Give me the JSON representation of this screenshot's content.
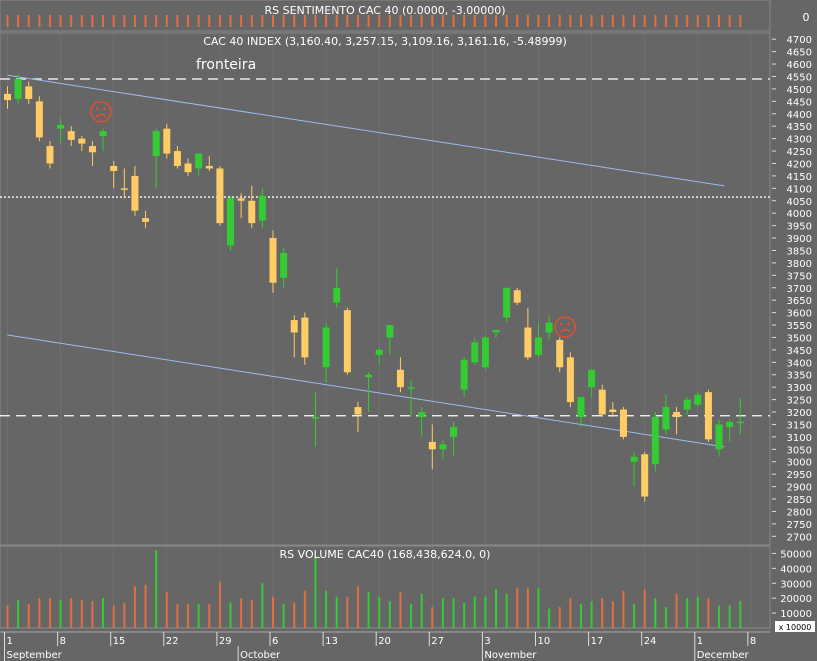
{
  "colors": {
    "background": "#666666",
    "grid": "#7a7a7a",
    "text": "#ffffff",
    "up": "#33cc33",
    "down": "#ffcc66",
    "volume_up": "#33cc33",
    "volume_down": "#e07040",
    "sentiment_bar": "#e07040",
    "trendline": "#99bbee",
    "frown": "#e05030"
  },
  "sentiment_panel": {
    "title": "RS SENTIMENTO CAC 40 (0.0000, -3.00000)",
    "axis_label": "0"
  },
  "price_panel": {
    "title": "CAC 40 INDEX (3,160.40, 3,257.15, 3,109.16, 3,161.16, -5.48999)",
    "annotation": "fronteira"
  },
  "volume_panel": {
    "title": "RS VOLUME CAC40 (168,438,624.0, 0)",
    "scale_label": "x 10000"
  },
  "chart_data": {
    "type": "candlestick",
    "title": "CAC 40 INDEX (3,160.40, 3,257.15, 3,109.16, 3,161.16, -5.48999)",
    "y_ticks": [
      2700,
      2750,
      2800,
      2850,
      2900,
      2950,
      3000,
      3050,
      3100,
      3150,
      3200,
      3250,
      3300,
      3350,
      3400,
      3450,
      3500,
      3550,
      3600,
      3650,
      3700,
      3750,
      3800,
      3850,
      3900,
      3950,
      4000,
      4050,
      4100,
      4150,
      4200,
      4250,
      4300,
      4350,
      4400,
      4450,
      4500,
      4550,
      4600,
      4650,
      4700
    ],
    "ylim": [
      2665,
      4725
    ],
    "x_ticks": [
      {
        "label": "1",
        "index": 0
      },
      {
        "label": "8",
        "index": 5
      },
      {
        "label": "15",
        "index": 10
      },
      {
        "label": "22",
        "index": 15
      },
      {
        "label": "29",
        "index": 20
      },
      {
        "label": "6",
        "index": 25
      },
      {
        "label": "13",
        "index": 30
      },
      {
        "label": "20",
        "index": 35
      },
      {
        "label": "27",
        "index": 40
      },
      {
        "label": "3",
        "index": 45
      },
      {
        "label": "10",
        "index": 50
      },
      {
        "label": "17",
        "index": 55
      },
      {
        "label": "24",
        "index": 60
      },
      {
        "label": "1",
        "index": 65
      },
      {
        "label": "8",
        "index": 70
      }
    ],
    "months": [
      {
        "label": "September",
        "index": 0
      },
      {
        "label": "October",
        "index": 22
      },
      {
        "label": "November",
        "index": 45
      },
      {
        "label": "December",
        "index": 65
      }
    ],
    "horizontal_lines": [
      4540,
      4065,
      3185
    ],
    "trendlines": [
      {
        "from": {
          "index": 0,
          "value": 4555
        },
        "to": {
          "index": 67.5,
          "value": 4110
        }
      },
      {
        "from": {
          "index": 0,
          "value": 3510
        },
        "to": {
          "index": 67.5,
          "value": 3060
        }
      }
    ],
    "frown_markers": [
      {
        "index": 8.8,
        "value": 4408
      },
      {
        "index": 52.5,
        "value": 3542
      }
    ],
    "candles": [
      {
        "o": 4480,
        "h": 4510,
        "l": 4420,
        "c": 4455
      },
      {
        "o": 4460,
        "h": 4560,
        "l": 4440,
        "c": 4540
      },
      {
        "o": 4510,
        "h": 4530,
        "l": 4440,
        "c": 4460
      },
      {
        "o": 4450,
        "h": 4470,
        "l": 4290,
        "c": 4305
      },
      {
        "o": 4270,
        "h": 4290,
        "l": 4180,
        "c": 4200
      },
      {
        "o": 4340,
        "h": 4380,
        "l": 4280,
        "c": 4355
      },
      {
        "o": 4330,
        "h": 4350,
        "l": 4270,
        "c": 4295
      },
      {
        "o": 4300,
        "h": 4310,
        "l": 4250,
        "c": 4280
      },
      {
        "o": 4270,
        "h": 4290,
        "l": 4190,
        "c": 4245
      },
      {
        "o": 4310,
        "h": 4340,
        "l": 4250,
        "c": 4330
      },
      {
        "o": 4190,
        "h": 4210,
        "l": 4100,
        "c": 4170
      },
      {
        "o": 4100,
        "h": 4180,
        "l": 4060,
        "c": 4095
      },
      {
        "o": 4150,
        "h": 4190,
        "l": 3990,
        "c": 4010
      },
      {
        "o": 3980,
        "h": 4010,
        "l": 3940,
        "c": 3965
      },
      {
        "o": 4230,
        "h": 4340,
        "l": 4100,
        "c": 4330
      },
      {
        "o": 4340,
        "h": 4360,
        "l": 4220,
        "c": 4240
      },
      {
        "o": 4250,
        "h": 4270,
        "l": 4180,
        "c": 4190
      },
      {
        "o": 4200,
        "h": 4220,
        "l": 4150,
        "c": 4165
      },
      {
        "o": 4180,
        "h": 4240,
        "l": 4150,
        "c": 4240
      },
      {
        "o": 4190,
        "h": 4230,
        "l": 4170,
        "c": 4180
      },
      {
        "o": 4180,
        "h": 4190,
        "l": 3950,
        "c": 3960
      },
      {
        "o": 3870,
        "h": 4070,
        "l": 3850,
        "c": 4060
      },
      {
        "o": 4060,
        "h": 4080,
        "l": 3980,
        "c": 4050
      },
      {
        "o": 4050,
        "h": 4110,
        "l": 3940,
        "c": 3960
      },
      {
        "o": 3970,
        "h": 4100,
        "l": 3940,
        "c": 4070
      },
      {
        "o": 3900,
        "h": 3930,
        "l": 3680,
        "c": 3720
      },
      {
        "o": 3740,
        "h": 3860,
        "l": 3700,
        "c": 3840
      },
      {
        "o": 3570,
        "h": 3590,
        "l": 3420,
        "c": 3520
      },
      {
        "o": 3580,
        "h": 3600,
        "l": 3390,
        "c": 3420
      },
      {
        "o": 3180,
        "h": 3280,
        "l": 3060,
        "c": 3180
      },
      {
        "o": 3380,
        "h": 3560,
        "l": 3320,
        "c": 3540
      },
      {
        "o": 3640,
        "h": 3780,
        "l": 3620,
        "c": 3700
      },
      {
        "o": 3610,
        "h": 3620,
        "l": 3350,
        "c": 3360
      },
      {
        "o": 3220,
        "h": 3240,
        "l": 3120,
        "c": 3190
      },
      {
        "o": 3340,
        "h": 3360,
        "l": 3200,
        "c": 3350
      },
      {
        "o": 3430,
        "h": 3460,
        "l": 3390,
        "c": 3450
      },
      {
        "o": 3500,
        "h": 3550,
        "l": 3430,
        "c": 3550
      },
      {
        "o": 3370,
        "h": 3420,
        "l": 3280,
        "c": 3300
      },
      {
        "o": 3300,
        "h": 3330,
        "l": 3180,
        "c": 3300
      },
      {
        "o": 3180,
        "h": 3220,
        "l": 3100,
        "c": 3200
      },
      {
        "o": 3080,
        "h": 3150,
        "l": 2970,
        "c": 3050
      },
      {
        "o": 3050,
        "h": 3090,
        "l": 3010,
        "c": 3070
      },
      {
        "o": 3100,
        "h": 3160,
        "l": 3020,
        "c": 3140
      },
      {
        "o": 3290,
        "h": 3420,
        "l": 3260,
        "c": 3410
      },
      {
        "o": 3400,
        "h": 3500,
        "l": 3390,
        "c": 3480
      },
      {
        "o": 3380,
        "h": 3510,
        "l": 3370,
        "c": 3500
      },
      {
        "o": 3520,
        "h": 3530,
        "l": 3500,
        "c": 3530
      },
      {
        "o": 3580,
        "h": 3700,
        "l": 3560,
        "c": 3700
      },
      {
        "o": 3690,
        "h": 3700,
        "l": 3630,
        "c": 3640
      },
      {
        "o": 3540,
        "h": 3620,
        "l": 3410,
        "c": 3420
      },
      {
        "o": 3430,
        "h": 3560,
        "l": 3420,
        "c": 3500
      },
      {
        "o": 3520,
        "h": 3590,
        "l": 3490,
        "c": 3560
      },
      {
        "o": 3490,
        "h": 3500,
        "l": 3360,
        "c": 3380
      },
      {
        "o": 3420,
        "h": 3440,
        "l": 3220,
        "c": 3240
      },
      {
        "o": 3180,
        "h": 3260,
        "l": 3140,
        "c": 3260
      },
      {
        "o": 3300,
        "h": 3360,
        "l": 3260,
        "c": 3370
      },
      {
        "o": 3290,
        "h": 3310,
        "l": 3180,
        "c": 3190
      },
      {
        "o": 3210,
        "h": 3240,
        "l": 3180,
        "c": 3200
      },
      {
        "o": 3210,
        "h": 3220,
        "l": 3090,
        "c": 3100
      },
      {
        "o": 3000,
        "h": 3040,
        "l": 2900,
        "c": 3020
      },
      {
        "o": 3030,
        "h": 3040,
        "l": 2840,
        "c": 2860
      },
      {
        "o": 2990,
        "h": 3200,
        "l": 2960,
        "c": 3180
      },
      {
        "o": 3130,
        "h": 3270,
        "l": 3110,
        "c": 3220
      },
      {
        "o": 3200,
        "h": 3220,
        "l": 3110,
        "c": 3180
      },
      {
        "o": 3210,
        "h": 3260,
        "l": 3190,
        "c": 3250
      },
      {
        "o": 3230,
        "h": 3280,
        "l": 3220,
        "c": 3270
      },
      {
        "o": 3280,
        "h": 3290,
        "l": 3080,
        "c": 3090
      },
      {
        "o": 3050,
        "h": 3170,
        "l": 3020,
        "c": 3150
      },
      {
        "o": 3140,
        "h": 3170,
        "l": 3080,
        "c": 3160
      },
      {
        "o": 3160,
        "h": 3257,
        "l": 3109,
        "c": 3161
      }
    ],
    "volume": {
      "title": "RS VOLUME CAC40 (168,438,624.0, 0)",
      "y_ticks": [
        10000,
        20000,
        30000,
        40000,
        50000
      ],
      "ylim": [
        0,
        55000
      ],
      "values": [
        15000,
        19000,
        16000,
        20000,
        20000,
        19000,
        20000,
        19000,
        18000,
        20000,
        15000,
        17000,
        28000,
        29000,
        52000,
        24000,
        16000,
        16000,
        16000,
        16000,
        31000,
        17000,
        20000,
        19000,
        30000,
        21000,
        16000,
        17000,
        25000,
        48000,
        25000,
        21000,
        21000,
        28000,
        24000,
        21000,
        18000,
        24000,
        16000,
        23000,
        14000,
        20000,
        20000,
        17000,
        21000,
        21000,
        26000,
        23000,
        27000,
        27000,
        27000,
        13000,
        14000,
        20000,
        16000,
        18000,
        20000,
        18000,
        25000,
        16000,
        26000,
        20000,
        14000,
        23000,
        20000,
        21000,
        20000,
        15000,
        15000,
        18000
      ]
    },
    "sentiment": {
      "title": "RS SENTIMENTO CAC 40 (0.0000, -3.00000)",
      "bars": 70
    }
  }
}
